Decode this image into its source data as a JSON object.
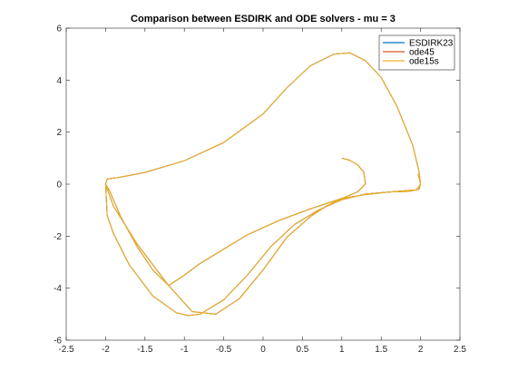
{
  "chart_data": {
    "type": "line",
    "title": "Comparison between ESDIRK and ODE solvers - mu = 3",
    "xlabel": "",
    "ylabel": "",
    "xlim": [
      -2.5,
      2.5
    ],
    "ylim": [
      -6,
      6
    ],
    "x_ticks": [
      -2.5,
      -2,
      -1.5,
      -1,
      -0.5,
      0,
      0.5,
      1,
      1.5,
      2,
      2.5
    ],
    "y_ticks": [
      -6,
      -4,
      -2,
      0,
      2,
      4,
      6
    ],
    "x_tick_labels": [
      "-2.5",
      "-2",
      "-1.5",
      "-1",
      "-0.5",
      "0",
      "0.5",
      "1",
      "1.5",
      "2",
      "2.5"
    ],
    "y_tick_labels": [
      "-6",
      "-4",
      "-2",
      "0",
      "2",
      "4",
      "6"
    ],
    "grid": false,
    "legend_position": "top-right",
    "series": [
      {
        "name": "ESDIRK23",
        "color": "#0072BD",
        "x": [
          1.0,
          1.1,
          1.2,
          1.28,
          1.3,
          1.2,
          1.0,
          0.6,
          0.2,
          -0.2,
          -0.5,
          -0.8,
          -1.0,
          -1.2,
          -1.4,
          -1.6,
          -1.8,
          -1.95,
          -2.0,
          -1.9,
          -1.6,
          -1.2,
          -0.9,
          -0.6,
          -0.3,
          0.0,
          0.3,
          0.6,
          0.8,
          1.0,
          1.3,
          1.6,
          1.85,
          1.98,
          2.0,
          1.98,
          1.9,
          1.7,
          1.5,
          1.3,
          1.1,
          0.9,
          0.6,
          0.3,
          0.0,
          -0.5,
          -1.0,
          -1.5,
          -1.85,
          -1.98,
          -2.0,
          -1.98,
          -1.9,
          -1.7,
          -1.4,
          -1.1,
          -0.95,
          -0.8,
          -0.5,
          -0.2,
          0.1,
          0.4,
          0.7,
          1.0,
          1.3,
          1.7,
          1.95,
          2.0,
          1.97
        ],
        "y": [
          1.0,
          0.92,
          0.75,
          0.45,
          0.0,
          -0.3,
          -0.55,
          -0.95,
          -1.4,
          -1.95,
          -2.5,
          -3.05,
          -3.5,
          -3.9,
          -3.3,
          -2.4,
          -1.3,
          -0.25,
          0.0,
          -0.85,
          -2.3,
          -3.9,
          -4.9,
          -5.0,
          -4.4,
          -3.3,
          -2.05,
          -1.25,
          -0.85,
          -0.55,
          -0.4,
          -0.3,
          -0.28,
          -0.2,
          0.0,
          0.5,
          1.5,
          3.0,
          4.1,
          4.75,
          5.05,
          5.0,
          4.55,
          3.7,
          2.7,
          1.6,
          0.9,
          0.45,
          0.25,
          0.2,
          0.0,
          -1.2,
          -1.9,
          -3.1,
          -4.3,
          -4.95,
          -5.05,
          -5.0,
          -4.45,
          -3.5,
          -2.4,
          -1.55,
          -1.0,
          -0.6,
          -0.38,
          -0.28,
          -0.22,
          0.0,
          0.4
        ]
      },
      {
        "name": "ode45",
        "color": "#D95319",
        "x": [
          1.0,
          1.1,
          1.2,
          1.28,
          1.3,
          1.2,
          1.0,
          0.6,
          0.2,
          -0.2,
          -0.5,
          -0.8,
          -1.0,
          -1.2,
          -1.4,
          -1.6,
          -1.8,
          -1.95,
          -2.0,
          -1.9,
          -1.6,
          -1.2,
          -0.9,
          -0.6,
          -0.3,
          0.0,
          0.3,
          0.6,
          0.8,
          1.0,
          1.3,
          1.6,
          1.85,
          1.98,
          2.0,
          1.98,
          1.9,
          1.7,
          1.5,
          1.3,
          1.1,
          0.9,
          0.6,
          0.3,
          0.0,
          -0.5,
          -1.0,
          -1.5,
          -1.85,
          -1.98,
          -2.0,
          -1.98,
          -1.9,
          -1.7,
          -1.4,
          -1.1,
          -0.95,
          -0.8,
          -0.5,
          -0.2,
          0.1,
          0.4,
          0.7,
          1.0,
          1.3,
          1.7,
          1.95,
          2.0,
          1.97
        ],
        "y": [
          1.0,
          0.92,
          0.75,
          0.45,
          0.0,
          -0.3,
          -0.55,
          -0.95,
          -1.4,
          -1.95,
          -2.5,
          -3.05,
          -3.5,
          -3.9,
          -3.3,
          -2.4,
          -1.3,
          -0.25,
          0.0,
          -0.85,
          -2.3,
          -3.9,
          -4.9,
          -5.0,
          -4.4,
          -3.3,
          -2.05,
          -1.25,
          -0.85,
          -0.55,
          -0.4,
          -0.3,
          -0.28,
          -0.2,
          0.0,
          0.5,
          1.5,
          3.0,
          4.1,
          4.75,
          5.05,
          5.0,
          4.55,
          3.7,
          2.7,
          1.6,
          0.9,
          0.45,
          0.25,
          0.2,
          0.0,
          -1.2,
          -1.9,
          -3.1,
          -4.3,
          -4.95,
          -5.05,
          -5.0,
          -4.45,
          -3.5,
          -2.4,
          -1.55,
          -1.0,
          -0.6,
          -0.38,
          -0.28,
          -0.22,
          0.0,
          0.4
        ]
      },
      {
        "name": "ode15s",
        "color": "#EDB120",
        "x": [
          1.0,
          1.1,
          1.2,
          1.28,
          1.3,
          1.2,
          1.0,
          0.6,
          0.2,
          -0.2,
          -0.5,
          -0.8,
          -1.0,
          -1.2,
          -1.4,
          -1.6,
          -1.8,
          -1.95,
          -2.0,
          -1.9,
          -1.6,
          -1.2,
          -0.9,
          -0.6,
          -0.3,
          0.0,
          0.3,
          0.6,
          0.8,
          1.0,
          1.3,
          1.6,
          1.85,
          1.98,
          2.0,
          1.98,
          1.9,
          1.7,
          1.5,
          1.3,
          1.1,
          0.9,
          0.6,
          0.3,
          0.0,
          -0.5,
          -1.0,
          -1.5,
          -1.85,
          -1.98,
          -2.0,
          -1.98,
          -1.9,
          -1.7,
          -1.4,
          -1.1,
          -0.95,
          -0.8,
          -0.5,
          -0.2,
          0.1,
          0.4,
          0.7,
          1.0,
          1.3,
          1.7,
          1.95,
          2.0,
          1.97
        ],
        "y": [
          1.0,
          0.92,
          0.75,
          0.45,
          0.0,
          -0.3,
          -0.55,
          -0.95,
          -1.4,
          -1.95,
          -2.5,
          -3.05,
          -3.5,
          -3.9,
          -3.3,
          -2.4,
          -1.3,
          -0.25,
          0.0,
          -0.85,
          -2.3,
          -3.9,
          -4.9,
          -5.0,
          -4.4,
          -3.3,
          -2.05,
          -1.25,
          -0.85,
          -0.55,
          -0.4,
          -0.3,
          -0.28,
          -0.2,
          0.0,
          0.5,
          1.5,
          3.0,
          4.1,
          4.75,
          5.05,
          5.0,
          4.55,
          3.7,
          2.7,
          1.6,
          0.9,
          0.45,
          0.25,
          0.2,
          0.0,
          -1.2,
          -1.9,
          -3.1,
          -4.3,
          -4.95,
          -5.05,
          -5.0,
          -4.45,
          -3.5,
          -2.4,
          -1.55,
          -1.0,
          -0.6,
          -0.38,
          -0.28,
          -0.22,
          0.0,
          0.4
        ]
      }
    ]
  }
}
